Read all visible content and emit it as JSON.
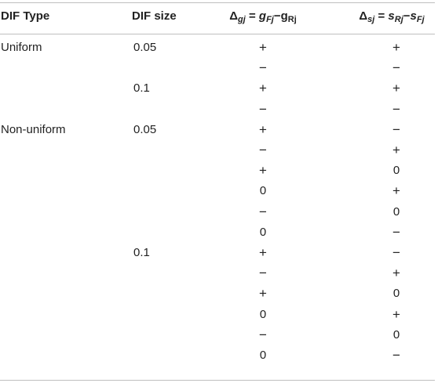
{
  "table": {
    "headers": {
      "type": "DIF Type",
      "size": "DIF size",
      "delta_g": {
        "delta": "Δ",
        "delta_sub": "gj",
        "eq": " = ",
        "left": "g",
        "left_sub": "Fj",
        "minus": "−",
        "right": "g",
        "right_sub": "Rj"
      },
      "delta_s": {
        "delta": "Δ",
        "delta_sub": "sj",
        "eq": " = ",
        "left": "s",
        "left_sub": "Rj",
        "minus": "−",
        "right": "s",
        "right_sub": "Fj"
      }
    },
    "rows": [
      {
        "type": "Uniform",
        "size": "0.05",
        "dg": "+",
        "ds": "+"
      },
      {
        "type": "",
        "size": "",
        "dg": "−",
        "ds": "−"
      },
      {
        "type": "",
        "size": "0.1",
        "dg": "+",
        "ds": "+"
      },
      {
        "type": "",
        "size": "",
        "dg": "−",
        "ds": "−"
      },
      {
        "type": "Non-uniform",
        "size": "0.05",
        "dg": "+",
        "ds": "−"
      },
      {
        "type": "",
        "size": "",
        "dg": "−",
        "ds": "+"
      },
      {
        "type": "",
        "size": "",
        "dg": "+",
        "ds": "0"
      },
      {
        "type": "",
        "size": "",
        "dg": "0",
        "ds": "+"
      },
      {
        "type": "",
        "size": "",
        "dg": "−",
        "ds": "0"
      },
      {
        "type": "",
        "size": "",
        "dg": "0",
        "ds": "−"
      },
      {
        "type": "",
        "size": "0.1",
        "dg": "+",
        "ds": "−"
      },
      {
        "type": "",
        "size": "",
        "dg": "−",
        "ds": "+"
      },
      {
        "type": "",
        "size": "",
        "dg": "+",
        "ds": "0"
      },
      {
        "type": "",
        "size": "",
        "dg": "0",
        "ds": "+"
      },
      {
        "type": "",
        "size": "",
        "dg": "−",
        "ds": "0"
      },
      {
        "type": "",
        "size": "",
        "dg": "0",
        "ds": "−"
      }
    ]
  }
}
